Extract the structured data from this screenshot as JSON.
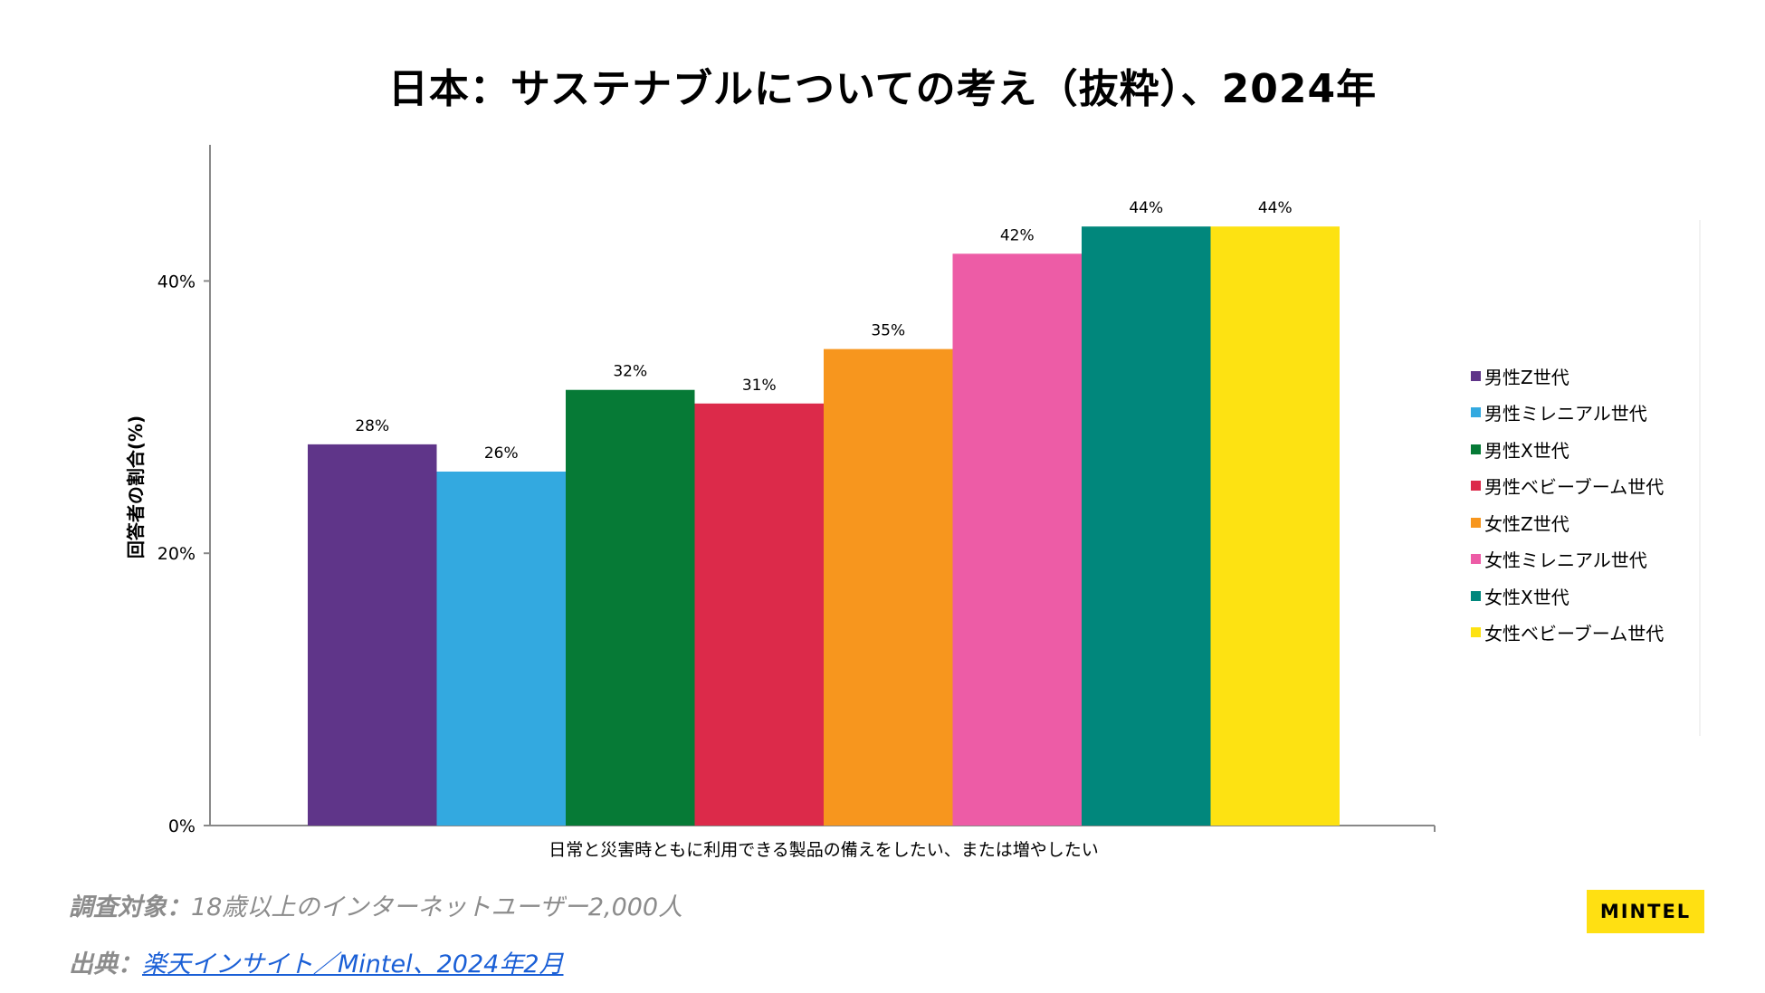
{
  "colors": {
    "male_gen_z": "#5f3589",
    "male_millennial": "#33a9e0",
    "male_gen_x": "#067a36",
    "male_boomer": "#dc2a4a",
    "female_gen_z": "#f7961e",
    "female_millennial": "#ed5ca6",
    "female_gen_x": "#01877c",
    "female_boomer": "#fde212",
    "axis": "#888888",
    "brand_yellow": "#ffe012",
    "link": "#1a5fd6"
  },
  "chart_data": {
    "type": "bar",
    "title": "日本：サステナブルについての考え（抜粋）、2024年",
    "categories": [
      "日常と災害時ともに利用できる製品の備えをしたい、または増やしたい"
    ],
    "xlabel": "",
    "ylabel": "回答者の割合(%)",
    "ylim": [
      0,
      50
    ],
    "yticks": [
      0,
      20,
      40
    ],
    "ytick_labels": [
      "0%",
      "20%",
      "40%"
    ],
    "legend_position": "right",
    "series": [
      {
        "name": "男性Z世代",
        "values": [
          28
        ],
        "label": "28%"
      },
      {
        "name": "男性ミレニアル世代",
        "values": [
          26
        ],
        "label": "26%"
      },
      {
        "name": "男性X世代",
        "values": [
          32
        ],
        "label": "32%"
      },
      {
        "name": "男性ベビーブーム世代",
        "values": [
          31
        ],
        "label": "31%"
      },
      {
        "name": "女性Z世代",
        "values": [
          35
        ],
        "label": "35%"
      },
      {
        "name": "女性ミレニアル世代",
        "values": [
          42
        ],
        "label": "42%"
      },
      {
        "name": "女性X世代",
        "values": [
          44
        ],
        "label": "44%"
      },
      {
        "name": "女性ベビーブーム世代",
        "values": [
          44
        ],
        "label": "44%"
      }
    ]
  },
  "footnotes": {
    "survey_label": "調査対象：",
    "survey_text": "18歳以上のインターネットユーザー2,000人",
    "source_label": "出典：",
    "source_text": "楽天インサイト／Mintel、2024年2月"
  },
  "brand": {
    "logo_text": "MINTEL"
  }
}
